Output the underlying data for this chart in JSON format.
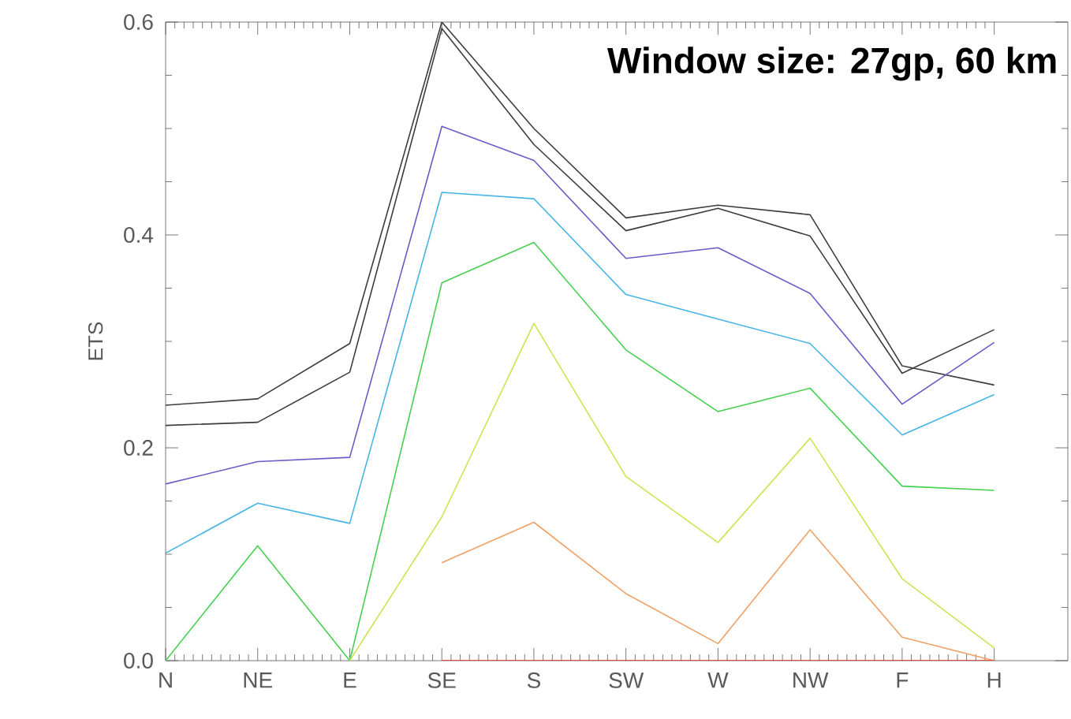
{
  "chart_data": {
    "type": "line",
    "title": "Window size: 27gp, 60 km",
    "ylabel": "ETS",
    "categories": [
      "N",
      "NE",
      "E",
      "SE",
      "S",
      "SW",
      "W",
      "NW",
      "F",
      "H"
    ],
    "ylim": [
      0,
      0.6
    ],
    "yticks": [
      {
        "value": 0,
        "label": "0.0"
      },
      {
        "value": 0.2,
        "label": "0.2"
      },
      {
        "value": 0.4,
        "label": "0.4"
      },
      {
        "value": 0.6,
        "label": "0.6"
      }
    ],
    "marker": "none",
    "line_style": "solid",
    "series": [
      {
        "color": "#3c3c3c",
        "values": [
          0.24,
          0.246,
          0.298,
          0.6,
          0.5,
          0.416,
          0.428,
          0.419,
          0.277,
          0.259
        ]
      },
      {
        "color": "#3c3c3c",
        "values": [
          0.221,
          0.224,
          0.271,
          0.594,
          0.485,
          0.404,
          0.425,
          0.399,
          0.27,
          0.311
        ]
      },
      {
        "color": "#6a5ac8",
        "values": [
          0.166,
          0.187,
          0.191,
          0.502,
          0.47,
          0.378,
          0.388,
          0.345,
          0.241,
          0.299
        ]
      },
      {
        "color": "#45b4e6",
        "values": [
          0.101,
          0.148,
          0.129,
          0.44,
          0.434,
          0.344,
          0.321,
          0.298,
          0.212,
          0.25
        ]
      },
      {
        "color": "#45d050",
        "values": [
          0,
          0.108,
          0,
          0.355,
          0.393,
          0.292,
          0.234,
          0.256,
          0.164,
          0.16
        ]
      },
      {
        "color": "#c8e650",
        "values": [
          null,
          null,
          0,
          0.135,
          0.317,
          0.173,
          0.111,
          0.209,
          0.077,
          0.012
        ]
      },
      {
        "color": "#f0a064",
        "values": [
          null,
          null,
          null,
          0.092,
          0.13,
          0.063,
          0.016,
          0.123,
          0.022,
          0
        ]
      },
      {
        "color": "#e83020",
        "values": [
          null,
          null,
          null,
          0,
          0,
          0,
          0,
          0,
          0,
          0
        ]
      }
    ]
  }
}
